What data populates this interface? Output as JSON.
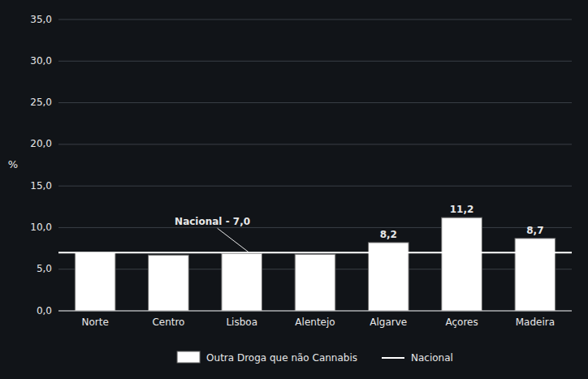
{
  "chart_data": {
    "type": "bar",
    "categories": [
      "Norte",
      "Centro",
      "Lisboa",
      "Alentejo",
      "Algarve",
      "Açores",
      "Madeira"
    ],
    "series": [
      {
        "name": "Outra Droga que não Cannabis",
        "color": "#ffffff",
        "values": [
          7.0,
          6.7,
          6.9,
          6.8,
          8.2,
          11.2,
          8.7
        ],
        "value_labels": [
          null,
          null,
          null,
          null,
          "8,2",
          "11,2",
          "8,7"
        ]
      }
    ],
    "reference_line": {
      "name": "Nacional",
      "value": 7.0,
      "label": "Nacional - 7,0",
      "color": "#ffffff"
    },
    "y_label": "%",
    "ylim": [
      0,
      35
    ],
    "yticks": [
      {
        "value": 0,
        "label": "0,0"
      },
      {
        "value": 5,
        "label": "5,0"
      },
      {
        "value": 10,
        "label": "10,0"
      },
      {
        "value": 15,
        "label": "15,0"
      },
      {
        "value": 20,
        "label": "20,0"
      },
      {
        "value": 25,
        "label": "25,0"
      },
      {
        "value": 30,
        "label": "30,0"
      },
      {
        "value": 35,
        "label": "35,0"
      }
    ],
    "grid": true,
    "data_labels": true,
    "legend": "bottom"
  }
}
